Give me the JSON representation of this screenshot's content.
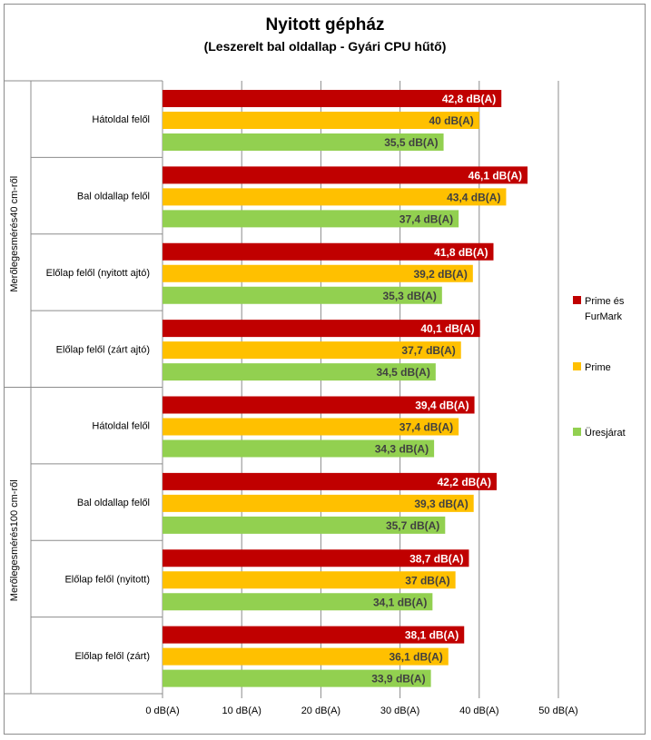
{
  "chart_data": {
    "type": "bar",
    "orientation": "horizontal",
    "title": "Nyitott gépház",
    "subtitle": "(Leszerelt bal oldallap - Gyári CPU hűtő)",
    "groups": [
      {
        "label": "Merőlegesmérés40 cm-ről",
        "categories": [
          "Hátoldal felől",
          "Bal oldallap felől",
          "Előlap felől (nyitott ajtó)",
          "Előlap felől (zárt ajtó)"
        ]
      },
      {
        "label": "Merőlegesmérés100 cm-ről",
        "categories": [
          "Hátoldal felől",
          "Bal oldallap felől",
          "Előlap felől (nyitott)",
          "Előlap felől (zárt)"
        ]
      }
    ],
    "series": [
      {
        "name": "Prime és FurMark",
        "color": "#c00000",
        "values": [
          42.8,
          46.1,
          41.8,
          40.1,
          39.4,
          42.2,
          38.7,
          38.1
        ],
        "labels": [
          "42,8 dB(A)",
          "46,1 dB(A)",
          "41,8 dB(A)",
          "40,1 dB(A)",
          "39,4 dB(A)",
          "42,2 dB(A)",
          "38,7 dB(A)",
          "38,1 dB(A)"
        ]
      },
      {
        "name": "Prime",
        "color": "#ffc000",
        "values": [
          40,
          43.4,
          39.2,
          37.7,
          37.4,
          39.3,
          37,
          36.1
        ],
        "labels": [
          "40 dB(A)",
          "43,4 dB(A)",
          "39,2 dB(A)",
          "37,7 dB(A)",
          "37,4 dB(A)",
          "39,3 dB(A)",
          "37 dB(A)",
          "36,1 dB(A)"
        ]
      },
      {
        "name": "Üresjárat",
        "color": "#92d050",
        "values": [
          35.5,
          37.4,
          35.3,
          34.5,
          34.3,
          35.7,
          34.1,
          33.9
        ],
        "labels": [
          "35,5 dB(A)",
          "37,4 dB(A)",
          "35,3 dB(A)",
          "34,5 dB(A)",
          "34,3 dB(A)",
          "35,7 dB(A)",
          "34,1 dB(A)",
          "33,9 dB(A)"
        ]
      }
    ],
    "legend": [
      {
        "line1": "Prime és",
        "line2": "FurMark"
      },
      {
        "line1": "Prime",
        "line2": ""
      },
      {
        "line1": "Üresjárat",
        "line2": ""
      }
    ],
    "xlim": [
      0,
      50
    ],
    "xticks": [
      0,
      10,
      20,
      30,
      40,
      50
    ],
    "xtick_labels": [
      "0 dB(A)",
      "10 dB(A)",
      "20 dB(A)",
      "30 dB(A)",
      "40 dB(A)",
      "50 dB(A)"
    ],
    "grid": true,
    "legend_position": "right"
  }
}
